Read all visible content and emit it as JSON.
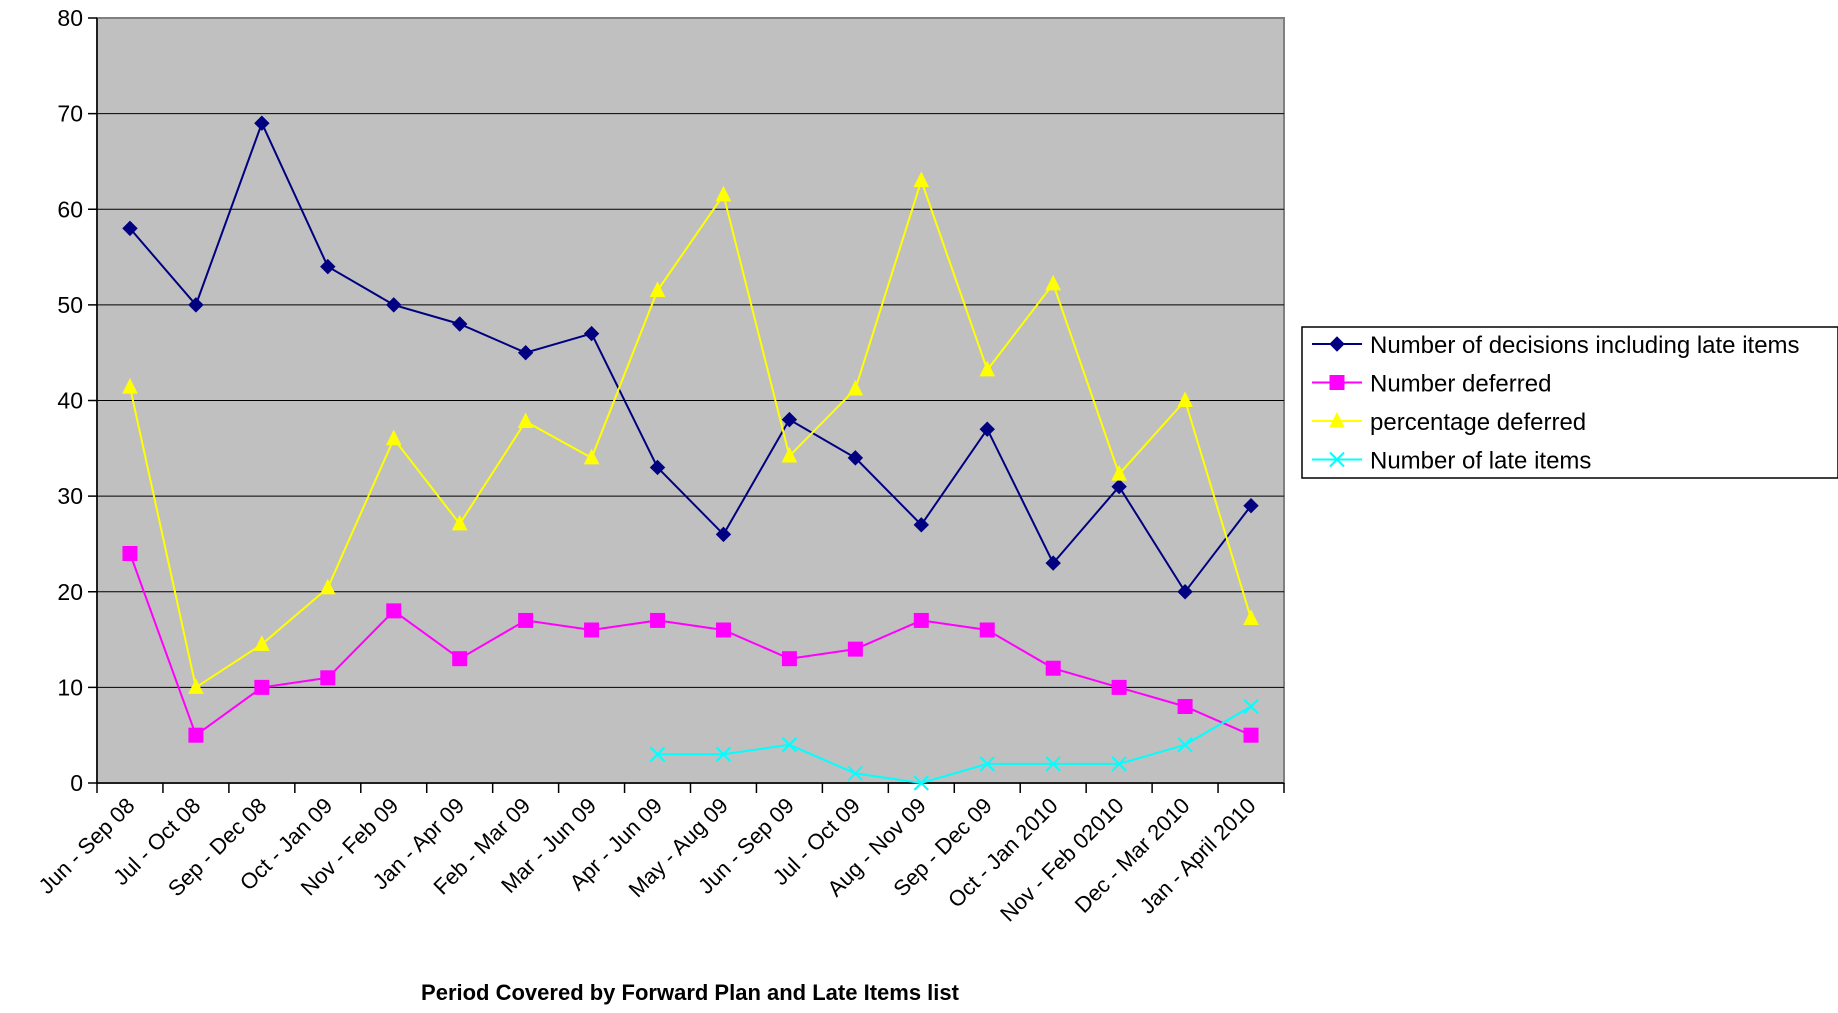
{
  "chart_data": {
    "type": "line",
    "title": "",
    "xlabel": "Period Covered by Forward Plan and Late Items list",
    "ylabel": "",
    "ylim": [
      0,
      80
    ],
    "yticks": [
      0,
      10,
      20,
      30,
      40,
      50,
      60,
      70,
      80
    ],
    "grid": true,
    "legend_position": "right",
    "plot_background": "#c0c0c0",
    "categories": [
      "Jun - Sep 08",
      "Jul - Oct 08",
      "Sep - Dec 08",
      "Oct - Jan 09",
      "Nov - Feb 09",
      "Jan - Apr 09",
      "Feb - Mar 09",
      "Mar - Jun 09",
      "Apr - Jun 09",
      "May - Aug 09",
      "Jun - Sep 09",
      "Jul - Oct 09",
      "Aug - Nov 09",
      "Sep - Dec 09",
      "Oct - Jan 2010",
      "Nov - Feb 02010",
      "Dec - Mar 2010",
      "Jan - April 2010"
    ],
    "series": [
      {
        "name": "Number of decisions including late items",
        "color": "#000080",
        "marker": "diamond",
        "values": [
          58,
          50,
          69,
          54,
          50,
          48,
          45,
          47,
          33,
          26,
          38,
          34,
          27,
          37,
          23,
          31,
          20,
          29
        ]
      },
      {
        "name": "Number deferred",
        "color": "#ff00ff",
        "marker": "square",
        "values": [
          24,
          5,
          10,
          11,
          18,
          13,
          17,
          16,
          17,
          16,
          13,
          14,
          17,
          16,
          12,
          10,
          8,
          5
        ]
      },
      {
        "name": "percentage deferred",
        "color": "#ffff00",
        "marker": "triangle",
        "values": [
          41.4,
          10,
          14.5,
          20.4,
          36,
          27.1,
          37.8,
          34,
          51.5,
          61.5,
          34.2,
          41.2,
          63,
          43.2,
          52.2,
          32.3,
          40,
          17.2
        ]
      },
      {
        "name": "Number of late items",
        "color": "#00ffff",
        "marker": "x",
        "values": [
          null,
          null,
          null,
          null,
          null,
          null,
          null,
          null,
          3,
          3,
          4,
          1,
          0,
          2,
          2,
          2,
          4,
          8
        ]
      }
    ]
  }
}
